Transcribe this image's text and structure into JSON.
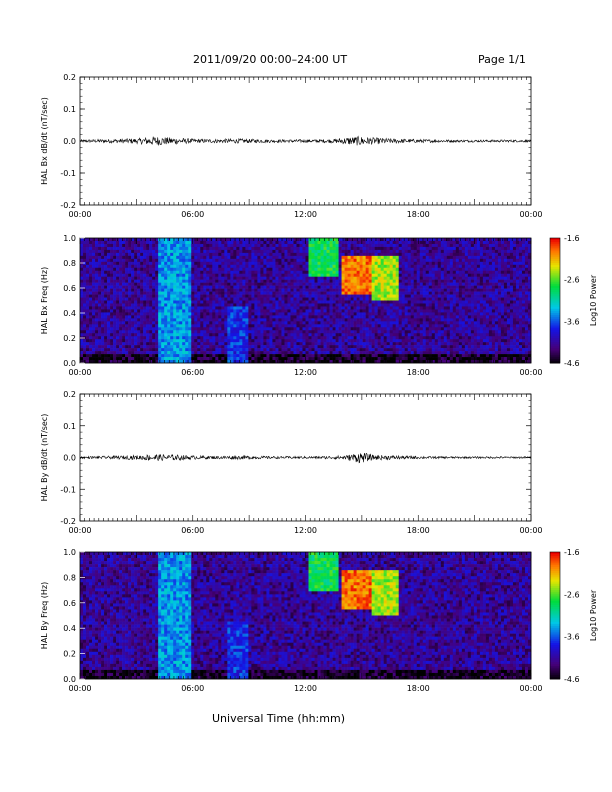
{
  "header": {
    "title": "2011/09/20  00:00–24:00 UT",
    "page": "Page 1/1"
  },
  "footer": {
    "xlabel": "Universal Time (hh:mm)"
  },
  "time_ticks": [
    "00:00",
    "06:00",
    "12:00",
    "18:00",
    "00:00"
  ],
  "chart_data": [
    {
      "type": "line",
      "ylabel": "HAL Bx dB/dt (nT/sec)",
      "ylim": [
        -0.2,
        0.2
      ],
      "yticks": [
        "0.2",
        "0.1",
        "0.0",
        "-0.1",
        "-0.2"
      ],
      "xlim": [
        0,
        24
      ],
      "series": [
        {
          "activity": [
            [
              0.5,
              0.008
            ],
            [
              1.6,
              0.01
            ],
            [
              2.4,
              0.012
            ],
            [
              3.1,
              0.014
            ],
            [
              4.0,
              0.025
            ],
            [
              4.6,
              0.02
            ],
            [
              5.3,
              0.016
            ],
            [
              6.2,
              0.01
            ],
            [
              7.3,
              0.01
            ],
            [
              8.3,
              0.012
            ],
            [
              9.3,
              0.01
            ],
            [
              10.5,
              0.008
            ],
            [
              12.2,
              0.008
            ],
            [
              13.5,
              0.01
            ],
            [
              14.2,
              0.02
            ],
            [
              14.9,
              0.025
            ],
            [
              15.6,
              0.018
            ],
            [
              16.8,
              0.012
            ],
            [
              18.5,
              0.008
            ],
            [
              20.0,
              0.006
            ],
            [
              23.0,
              0.006
            ]
          ]
        }
      ]
    },
    {
      "type": "heatmap",
      "ylabel": "HAL Bx Freq (Hz)",
      "ylim": [
        0.0,
        1.0
      ],
      "yticks": [
        "1.0",
        "0.8",
        "0.6",
        "0.4",
        "0.2",
        "0.0"
      ],
      "xlim": [
        0,
        24
      ],
      "colorbar": {
        "label": "Log10 Power",
        "range": [
          -4.6,
          -1.6
        ],
        "ticks": [
          "-1.6",
          "-2.6",
          "-3.6",
          "-4.6"
        ]
      },
      "features": [
        {
          "t_start": 4.1,
          "t_end": 5.9,
          "f_low": 0.0,
          "f_high": 1.0,
          "power": -3.4
        },
        {
          "t_start": 7.8,
          "t_end": 9.0,
          "f_low": 0.0,
          "f_high": 0.45,
          "power": -3.7
        },
        {
          "t_start": 12.2,
          "t_end": 13.8,
          "f_low": 0.7,
          "f_high": 1.0,
          "power": -2.8
        },
        {
          "t_start": 14.0,
          "t_end": 15.5,
          "f_low": 0.55,
          "f_high": 0.85,
          "power": -1.9
        },
        {
          "t_start": 15.5,
          "t_end": 16.9,
          "f_low": 0.5,
          "f_high": 0.85,
          "power": -2.4
        }
      ]
    },
    {
      "type": "line",
      "ylabel": "HAL By dB/dt (nT/sec)",
      "ylim": [
        -0.2,
        0.2
      ],
      "yticks": [
        "0.2",
        "0.1",
        "0.0",
        "-0.1",
        "-0.2"
      ],
      "xlim": [
        0,
        24
      ],
      "series": [
        {
          "activity": [
            [
              0.5,
              0.006
            ],
            [
              1.6,
              0.008
            ],
            [
              2.4,
              0.01
            ],
            [
              3.1,
              0.012
            ],
            [
              4.0,
              0.018
            ],
            [
              4.6,
              0.016
            ],
            [
              5.3,
              0.014
            ],
            [
              6.2,
              0.009
            ],
            [
              7.3,
              0.008
            ],
            [
              8.3,
              0.01
            ],
            [
              9.3,
              0.008
            ],
            [
              10.5,
              0.006
            ],
            [
              12.2,
              0.006
            ],
            [
              13.5,
              0.008
            ],
            [
              14.2,
              0.012
            ],
            [
              14.9,
              0.03
            ],
            [
              15.6,
              0.014
            ],
            [
              16.8,
              0.01
            ],
            [
              18.5,
              0.006
            ],
            [
              20.0,
              0.005
            ],
            [
              23.0,
              0.005
            ]
          ]
        }
      ]
    },
    {
      "type": "heatmap",
      "ylabel": "HAL By Freq (Hz)",
      "ylim": [
        0.0,
        1.0
      ],
      "yticks": [
        "1.0",
        "0.8",
        "0.6",
        "0.4",
        "0.2",
        "0.0"
      ],
      "xlim": [
        0,
        24
      ],
      "colorbar": {
        "label": "Log10 Power",
        "range": [
          -4.6,
          -1.6
        ],
        "ticks": [
          "-1.6",
          "-2.6",
          "-3.6",
          "-4.6"
        ]
      },
      "features": [
        {
          "t_start": 4.1,
          "t_end": 5.9,
          "f_low": 0.0,
          "f_high": 1.0,
          "power": -3.4
        },
        {
          "t_start": 7.8,
          "t_end": 9.0,
          "f_low": 0.0,
          "f_high": 0.45,
          "power": -3.7
        },
        {
          "t_start": 12.2,
          "t_end": 13.8,
          "f_low": 0.7,
          "f_high": 1.0,
          "power": -2.8
        },
        {
          "t_start": 14.0,
          "t_end": 15.5,
          "f_low": 0.55,
          "f_high": 0.85,
          "power": -1.9
        },
        {
          "t_start": 15.5,
          "t_end": 16.9,
          "f_low": 0.5,
          "f_high": 0.85,
          "power": -2.4
        }
      ]
    }
  ]
}
